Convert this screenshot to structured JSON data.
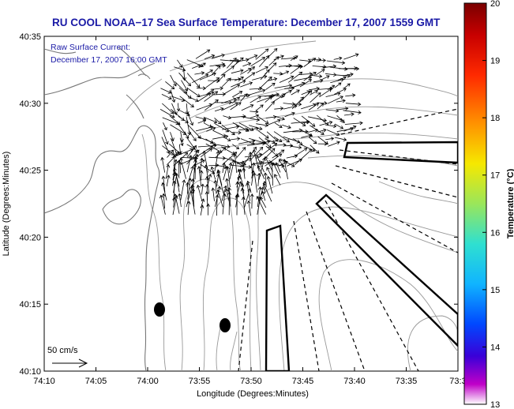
{
  "title": "RU COOL  NOAA−17  Sea Surface Temperature:  December 17, 2007 1559 GMT",
  "annotation": {
    "line1": "Raw Surface Current:",
    "line2": "December 17, 2007 16:00 GMT"
  },
  "scale_label": "50 cm/s",
  "axes": {
    "x_label": "Longitude (Degrees:Minutes)",
    "y_label": "Latitude (Degrees:Minutes)",
    "x_ticks": [
      "74:10",
      "74:05",
      "74:00",
      "73:55",
      "73:50",
      "73:45",
      "73:40",
      "73:35",
      "73:3"
    ],
    "y_ticks": [
      "40:35",
      "40:30",
      "40:25",
      "40:20",
      "40:15",
      "40:10"
    ]
  },
  "colorbar": {
    "label": "Temperature (°C)",
    "ticks": [
      "20",
      "19",
      "18",
      "17",
      "16",
      "15",
      "14",
      "13"
    ],
    "min": 13,
    "max": 20
  },
  "colors": {
    "title": "#1a1aa6",
    "contour": "#999999",
    "coast": "#777777",
    "vector": "#000000"
  }
}
